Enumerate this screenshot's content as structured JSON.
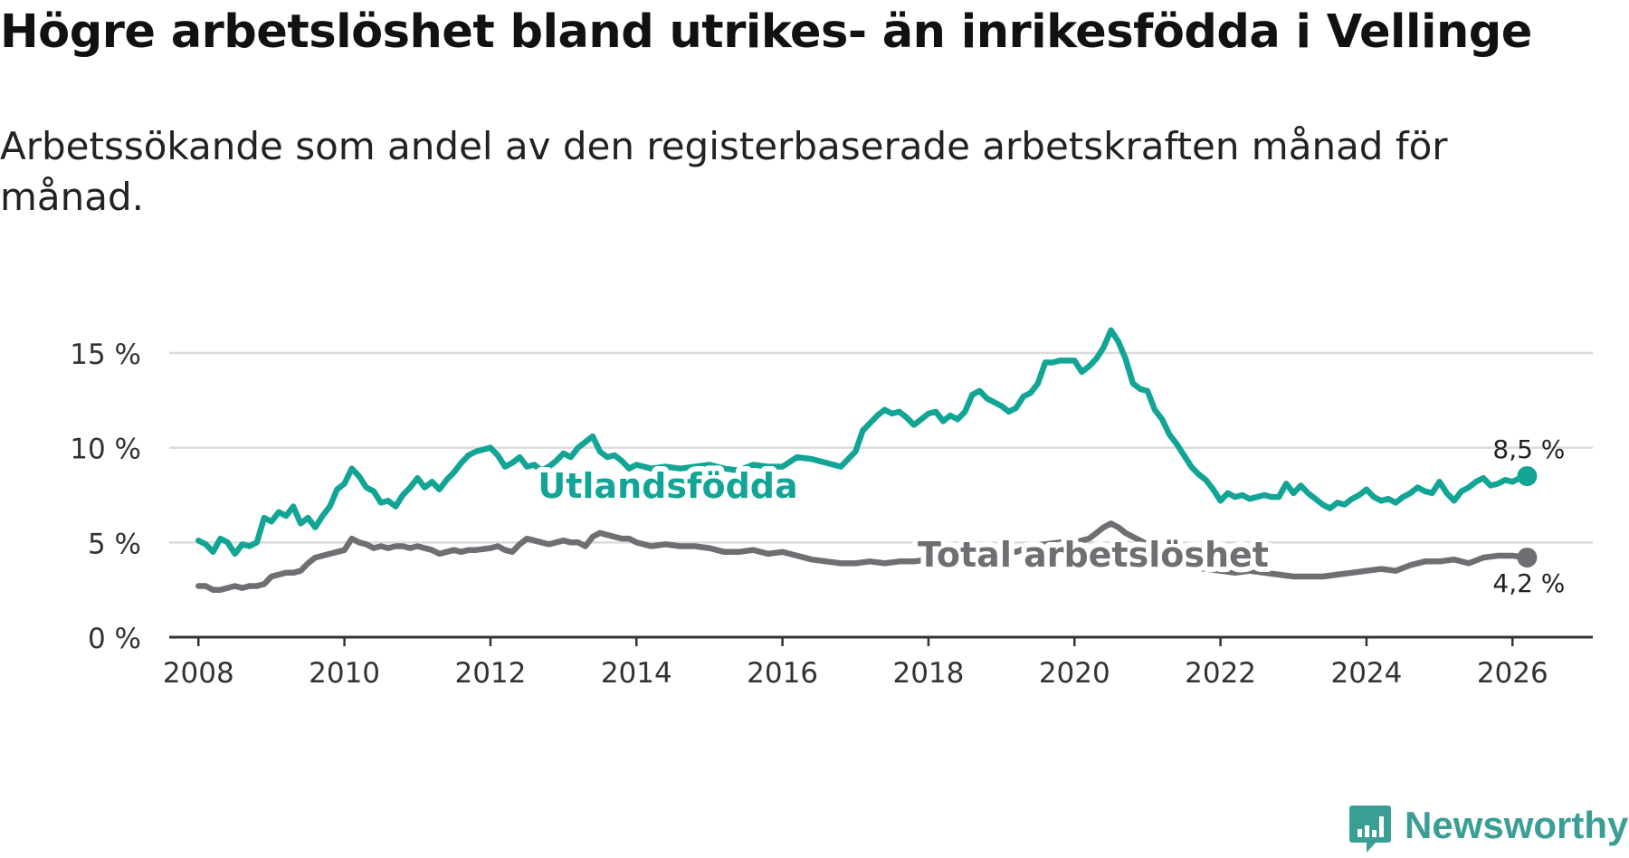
{
  "title": "Högre arbetslöshet bland utrikes- än inrikesfödda i Vellinge",
  "subtitle": "Arbetssökande som andel av den registerbaserade arbetskraften månad för månad.",
  "brand": {
    "name": "Newsworthy",
    "icon": "newsworthy-chart-icon",
    "color": "#3b9e95"
  },
  "chart_data": {
    "type": "line",
    "title": "Högre arbetslöshet bland utrikes- än inrikesfödda i Vellinge",
    "xlabel": "",
    "ylabel": "",
    "xlim": [
      2007.6,
      2027.1
    ],
    "ylim": [
      0,
      15
    ],
    "yticks": [
      0,
      5,
      10,
      15
    ],
    "ytick_labels": [
      "0 %",
      "5 %",
      "10 %",
      "15 %"
    ],
    "xticks": [
      2008,
      2010,
      2012,
      2014,
      2016,
      2018,
      2020,
      2022,
      2024,
      2026
    ],
    "xtick_labels": [
      "2008",
      "2010",
      "2012",
      "2014",
      "2016",
      "2018",
      "2020",
      "2022",
      "2024",
      "2026"
    ],
    "grid": true,
    "legend": "inline labels",
    "series": [
      {
        "name": "Utlandsfödda",
        "color": "#12a596",
        "end_label": "8,5 %",
        "x": [
          2008.0,
          2008.1,
          2008.2,
          2008.3,
          2008.4,
          2008.5,
          2008.6,
          2008.7,
          2008.8,
          2008.9,
          2009.0,
          2009.1,
          2009.2,
          2009.3,
          2009.4,
          2009.5,
          2009.6,
          2009.7,
          2009.8,
          2009.9,
          2010.0,
          2010.1,
          2010.2,
          2010.3,
          2010.4,
          2010.5,
          2010.6,
          2010.7,
          2010.8,
          2010.9,
          2011.0,
          2011.1,
          2011.2,
          2011.3,
          2011.4,
          2011.5,
          2011.6,
          2011.7,
          2011.8,
          2012.0,
          2012.1,
          2012.2,
          2012.3,
          2012.4,
          2012.5,
          2012.6,
          2012.7,
          2012.8,
          2012.9,
          2013.0,
          2013.1,
          2013.2,
          2013.3,
          2013.4,
          2013.5,
          2013.6,
          2013.7,
          2013.8,
          2013.9,
          2014.0,
          2014.2,
          2014.4,
          2014.6,
          2014.8,
          2015.0,
          2015.2,
          2015.4,
          2015.6,
          2015.8,
          2016.0,
          2016.2,
          2016.4,
          2016.6,
          2016.8,
          2017.0,
          2017.1,
          2017.2,
          2017.3,
          2017.4,
          2017.5,
          2017.6,
          2017.7,
          2017.8,
          2017.9,
          2018.0,
          2018.1,
          2018.2,
          2018.3,
          2018.4,
          2018.5,
          2018.6,
          2018.7,
          2018.8,
          2018.9,
          2019.0,
          2019.1,
          2019.2,
          2019.3,
          2019.4,
          2019.5,
          2019.6,
          2019.7,
          2019.8,
          2019.9,
          2020.0,
          2020.1,
          2020.2,
          2020.3,
          2020.4,
          2020.5,
          2020.6,
          2020.7,
          2020.8,
          2020.9,
          2021.0,
          2021.1,
          2021.2,
          2021.3,
          2021.4,
          2021.5,
          2021.6,
          2021.7,
          2021.8,
          2021.9,
          2022.0,
          2022.1,
          2022.2,
          2022.3,
          2022.4,
          2022.5,
          2022.6,
          2022.7,
          2022.8,
          2022.9,
          2023.0,
          2023.1,
          2023.2,
          2023.3,
          2023.4,
          2023.5,
          2023.6,
          2023.7,
          2023.8,
          2023.9,
          2024.0,
          2024.1,
          2024.2,
          2024.3,
          2024.4,
          2024.5,
          2024.6,
          2024.7,
          2024.8,
          2024.9,
          2025.0,
          2025.1,
          2025.2,
          2025.3,
          2025.4,
          2025.5,
          2025.6,
          2025.7,
          2025.8,
          2025.9,
          2026.0,
          2026.1,
          2026.2
        ],
        "values": [
          5.1,
          4.9,
          4.5,
          5.2,
          5.0,
          4.4,
          4.9,
          4.8,
          5.0,
          6.3,
          6.1,
          6.6,
          6.4,
          6.9,
          6.0,
          6.3,
          5.8,
          6.4,
          6.9,
          7.8,
          8.1,
          8.9,
          8.5,
          7.9,
          7.7,
          7.1,
          7.2,
          6.9,
          7.5,
          7.9,
          8.4,
          7.9,
          8.2,
          7.8,
          8.3,
          8.7,
          9.2,
          9.6,
          9.8,
          10.0,
          9.6,
          9.0,
          9.2,
          9.5,
          9.0,
          9.1,
          8.8,
          9.0,
          9.3,
          9.7,
          9.5,
          10.0,
          10.3,
          10.6,
          9.8,
          9.5,
          9.6,
          9.3,
          8.9,
          9.1,
          8.9,
          9.0,
          8.9,
          9.0,
          9.1,
          8.9,
          8.8,
          9.1,
          9.0,
          9.0,
          9.5,
          9.4,
          9.2,
          9.0,
          9.8,
          10.9,
          11.3,
          11.7,
          12.0,
          11.8,
          11.9,
          11.6,
          11.2,
          11.5,
          11.8,
          11.9,
          11.4,
          11.7,
          11.5,
          11.9,
          12.8,
          13.0,
          12.6,
          12.4,
          12.2,
          11.9,
          12.1,
          12.7,
          12.9,
          13.4,
          14.5,
          14.5,
          14.6,
          14.6,
          14.6,
          14.0,
          14.3,
          14.7,
          15.3,
          16.2,
          15.6,
          14.7,
          13.4,
          13.1,
          13.0,
          12.0,
          11.5,
          10.7,
          10.2,
          9.6,
          9.0,
          8.6,
          8.3,
          7.8,
          7.2,
          7.6,
          7.4,
          7.5,
          7.3,
          7.4,
          7.5,
          7.4,
          7.4,
          8.1,
          7.6,
          8.0,
          7.6,
          7.3,
          7.0,
          6.8,
          7.1,
          7.0,
          7.3,
          7.5,
          7.8,
          7.4,
          7.2,
          7.3,
          7.1,
          7.4,
          7.6,
          7.9,
          7.7,
          7.6,
          8.2,
          7.6,
          7.2,
          7.7,
          7.9,
          8.2,
          8.4,
          8.0,
          8.1,
          8.3,
          8.2,
          8.4,
          8.5
        ]
      },
      {
        "name": "Total arbetslöshet",
        "color": "#6e6e73",
        "end_label": "4,2 %",
        "x": [
          2008.0,
          2008.1,
          2008.2,
          2008.3,
          2008.4,
          2008.5,
          2008.6,
          2008.7,
          2008.8,
          2008.9,
          2009.0,
          2009.1,
          2009.2,
          2009.3,
          2009.4,
          2009.5,
          2009.6,
          2009.7,
          2009.8,
          2009.9,
          2010.0,
          2010.1,
          2010.2,
          2010.3,
          2010.4,
          2010.5,
          2010.6,
          2010.7,
          2010.8,
          2010.9,
          2011.0,
          2011.1,
          2011.2,
          2011.3,
          2011.4,
          2011.5,
          2011.6,
          2011.7,
          2011.8,
          2012.0,
          2012.1,
          2012.2,
          2012.3,
          2012.4,
          2012.5,
          2012.6,
          2012.7,
          2012.8,
          2012.9,
          2013.0,
          2013.1,
          2013.2,
          2013.3,
          2013.4,
          2013.5,
          2013.6,
          2013.7,
          2013.8,
          2013.9,
          2014.0,
          2014.2,
          2014.4,
          2014.6,
          2014.8,
          2015.0,
          2015.2,
          2015.4,
          2015.6,
          2015.8,
          2016.0,
          2016.2,
          2016.4,
          2016.6,
          2016.8,
          2017.0,
          2017.2,
          2017.4,
          2017.6,
          2017.8,
          2018.0,
          2018.2,
          2018.4,
          2018.6,
          2018.8,
          2019.0,
          2019.2,
          2019.4,
          2019.6,
          2019.8,
          2020.0,
          2020.2,
          2020.3,
          2020.4,
          2020.5,
          2020.6,
          2020.7,
          2020.8,
          2021.0,
          2021.2,
          2021.4,
          2021.6,
          2021.8,
          2022.0,
          2022.2,
          2022.4,
          2022.6,
          2022.8,
          2023.0,
          2023.2,
          2023.4,
          2023.6,
          2023.8,
          2024.0,
          2024.2,
          2024.4,
          2024.6,
          2024.8,
          2025.0,
          2025.2,
          2025.4,
          2025.6,
          2025.8,
          2026.0,
          2026.2
        ],
        "values": [
          2.7,
          2.7,
          2.5,
          2.5,
          2.6,
          2.7,
          2.6,
          2.7,
          2.7,
          2.8,
          3.2,
          3.3,
          3.4,
          3.4,
          3.5,
          3.9,
          4.2,
          4.3,
          4.4,
          4.5,
          4.6,
          5.2,
          5.0,
          4.9,
          4.7,
          4.8,
          4.7,
          4.8,
          4.8,
          4.7,
          4.8,
          4.7,
          4.6,
          4.4,
          4.5,
          4.6,
          4.5,
          4.6,
          4.6,
          4.7,
          4.8,
          4.6,
          4.5,
          4.9,
          5.2,
          5.1,
          5.0,
          4.9,
          5.0,
          5.1,
          5.0,
          5.0,
          4.8,
          5.3,
          5.5,
          5.4,
          5.3,
          5.2,
          5.2,
          5.0,
          4.8,
          4.9,
          4.8,
          4.8,
          4.7,
          4.5,
          4.5,
          4.6,
          4.4,
          4.5,
          4.3,
          4.1,
          4.0,
          3.9,
          3.9,
          4.0,
          3.9,
          4.0,
          4.0,
          4.1,
          4.2,
          4.3,
          4.4,
          4.4,
          4.6,
          4.5,
          4.8,
          4.9,
          5.0,
          5.0,
          5.2,
          5.5,
          5.8,
          6.0,
          5.8,
          5.5,
          5.3,
          4.9,
          4.4,
          4.0,
          3.7,
          3.6,
          3.5,
          3.4,
          3.5,
          3.4,
          3.3,
          3.2,
          3.2,
          3.2,
          3.3,
          3.4,
          3.5,
          3.6,
          3.5,
          3.8,
          4.0,
          4.0,
          4.1,
          3.9,
          4.2,
          4.3,
          4.3,
          4.2
        ]
      }
    ]
  }
}
